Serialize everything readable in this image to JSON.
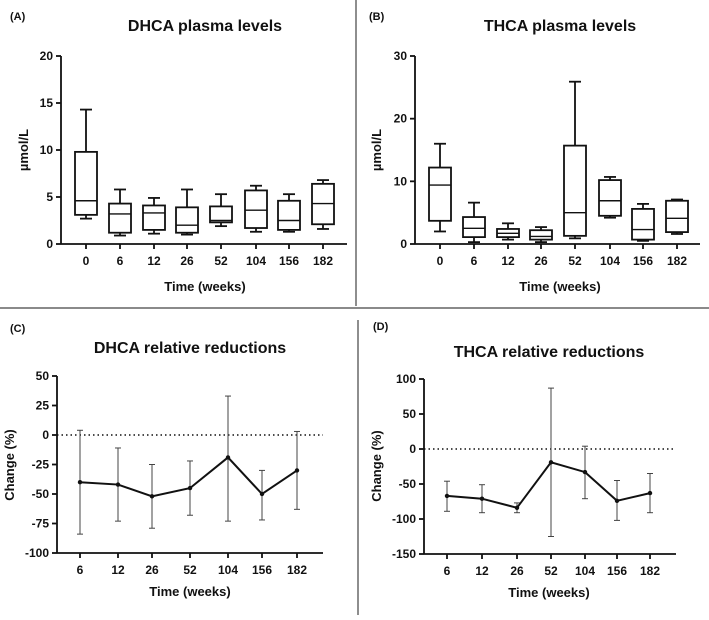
{
  "chart_data": [
    {
      "panel": "(A)",
      "type": "box",
      "title": "DHCA plasma levels",
      "xlabel": "Time (weeks)",
      "ylabel": "µmol/L",
      "ylim": [
        0,
        20
      ],
      "yticks": [
        0,
        5,
        10,
        15,
        20
      ],
      "categories": [
        "0",
        "6",
        "12",
        "26",
        "52",
        "104",
        "156",
        "182"
      ],
      "boxes": [
        {
          "min": 2.7,
          "q1": 3.1,
          "median": 4.6,
          "q3": 9.8,
          "max": 14.3
        },
        {
          "min": 0.9,
          "q1": 1.2,
          "median": 3.2,
          "q3": 4.3,
          "max": 5.8
        },
        {
          "min": 1.1,
          "q1": 1.5,
          "median": 3.3,
          "q3": 4.1,
          "max": 4.9
        },
        {
          "min": 1.0,
          "q1": 1.2,
          "median": 2.0,
          "q3": 3.9,
          "max": 5.8
        },
        {
          "min": 1.9,
          "q1": 2.3,
          "median": 2.5,
          "q3": 4.0,
          "max": 5.3
        },
        {
          "min": 1.3,
          "q1": 1.7,
          "median": 3.6,
          "q3": 5.7,
          "max": 6.2
        },
        {
          "min": 1.3,
          "q1": 1.5,
          "median": 2.5,
          "q3": 4.6,
          "max": 5.3
        },
        {
          "min": 1.6,
          "q1": 2.1,
          "median": 4.3,
          "q3": 6.4,
          "max": 6.8
        }
      ]
    },
    {
      "panel": "(B)",
      "type": "box",
      "title": "THCA plasma levels",
      "xlabel": "Time (weeks)",
      "ylabel": "µmol/L",
      "ylim": [
        0,
        30
      ],
      "yticks": [
        0,
        10,
        20,
        30
      ],
      "categories": [
        "0",
        "6",
        "12",
        "26",
        "52",
        "104",
        "156",
        "182"
      ],
      "boxes": [
        {
          "min": 2.0,
          "q1": 3.7,
          "median": 9.4,
          "q3": 12.2,
          "max": 16.0
        },
        {
          "min": 0.3,
          "q1": 1.1,
          "median": 2.5,
          "q3": 4.3,
          "max": 6.6
        },
        {
          "min": 0.7,
          "q1": 1.1,
          "median": 1.7,
          "q3": 2.4,
          "max": 3.3
        },
        {
          "min": 0.3,
          "q1": 0.7,
          "median": 1.2,
          "q3": 2.2,
          "max": 2.7
        },
        {
          "min": 0.9,
          "q1": 1.3,
          "median": 5.0,
          "q3": 15.7,
          "max": 25.9
        },
        {
          "min": 4.2,
          "q1": 4.5,
          "median": 6.9,
          "q3": 10.2,
          "max": 10.7
        },
        {
          "min": 0.5,
          "q1": 0.7,
          "median": 2.3,
          "q3": 5.6,
          "max": 6.4
        },
        {
          "min": 1.6,
          "q1": 1.9,
          "median": 4.1,
          "q3": 6.9,
          "max": 7.1
        }
      ]
    },
    {
      "panel": "(C)",
      "type": "line",
      "title": "DHCA relative reductions",
      "xlabel": "Time (weeks)",
      "ylabel": "Change (%)",
      "ylim": [
        -100,
        50
      ],
      "yticks": [
        -100,
        -75,
        -50,
        -25,
        0,
        25,
        50
      ],
      "reference_line": 0,
      "categories": [
        "6",
        "12",
        "26",
        "52",
        "104",
        "156",
        "182"
      ],
      "values": [
        -40,
        -42,
        -52,
        -45,
        -19,
        -50,
        -30
      ],
      "error_upper": [
        4,
        -11,
        -25,
        -22,
        33,
        -30,
        3
      ],
      "error_lower": [
        -84,
        -73,
        -79,
        -68,
        -73,
        -72,
        -63
      ]
    },
    {
      "panel": "(D)",
      "type": "line",
      "title": "THCA relative reductions",
      "xlabel": "Time (weeks)",
      "ylabel": "Change (%)",
      "ylim": [
        -150,
        100
      ],
      "yticks": [
        -150,
        -100,
        -50,
        0,
        50,
        100
      ],
      "reference_line": 0,
      "categories": [
        "6",
        "12",
        "26",
        "52",
        "104",
        "156",
        "182"
      ],
      "values": [
        -67,
        -71,
        -84,
        -19,
        -33,
        -74,
        -63
      ],
      "error_upper": [
        -46,
        -51,
        -77,
        87,
        4,
        -45,
        -35
      ],
      "error_lower": [
        -89,
        -91,
        -91,
        -125,
        -71,
        -102,
        -91
      ]
    }
  ]
}
